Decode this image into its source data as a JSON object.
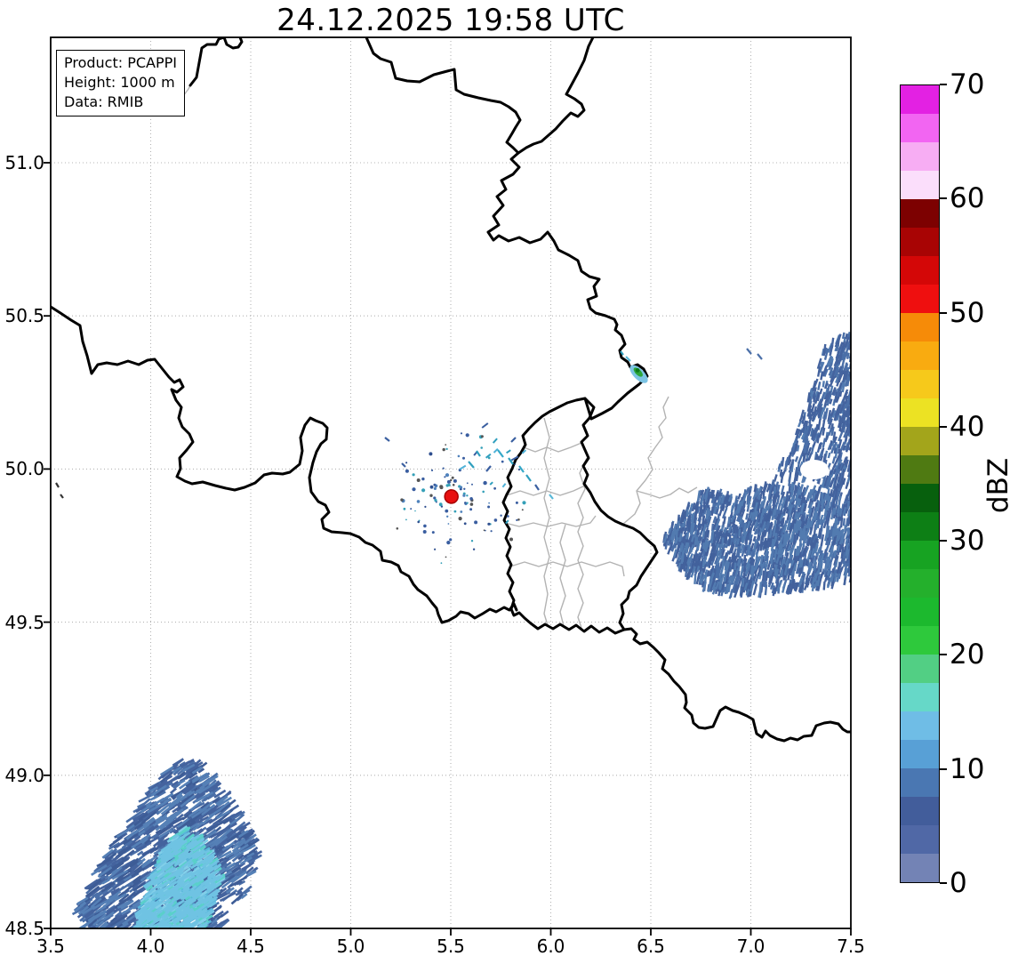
{
  "title": "24.12.2025 19:58 UTC",
  "info_box": {
    "line1": "Product: PCAPPI",
    "line2": "Height: 1000 m",
    "line3": "Data: RMIB"
  },
  "chart_data": {
    "type": "heatmap",
    "subtype": "weather-radar-reflectivity-map",
    "title": "24.12.2025 19:58 UTC",
    "x_axis": {
      "label": "",
      "ticks": [
        "3.5",
        "4.0",
        "4.5",
        "5.0",
        "5.5",
        "6.0",
        "6.5",
        "7.0",
        "7.5"
      ],
      "range": [
        3.5,
        7.5
      ],
      "unit": "degrees longitude"
    },
    "y_axis": {
      "label": "",
      "ticks": [
        "51.0",
        "50.5",
        "50.0",
        "49.5",
        "49.0",
        "48.5"
      ],
      "range": [
        48.5,
        51.41
      ],
      "unit": "degrees latitude"
    },
    "grid": "dotted light gray at every 0.5 degree",
    "colorbar": {
      "label": "dBZ",
      "min": 0,
      "max": 70,
      "ticks": [
        0,
        10,
        20,
        30,
        40,
        50,
        60,
        70
      ],
      "segment_step_dbz": 2.5,
      "segment_colors_low_to_high": [
        "#7383b5",
        "#5068a6",
        "#425d9b",
        "#4a77b2",
        "#58a0d6",
        "#6fbde6",
        "#66d8c8",
        "#52cf84",
        "#2ec93c",
        "#1cb92e",
        "#24b02c",
        "#17a322",
        "#0d7f15",
        "#07600d",
        "#4f7a12",
        "#a3a51b",
        "#ece223",
        "#f6c91b",
        "#f9ab10",
        "#f68b08",
        "#ef0f0f",
        "#d40707",
        "#a80404",
        "#7d0101",
        "#fbdefb",
        "#f7adf3",
        "#f265f2",
        "#e321e3"
      ]
    },
    "radar_site": {
      "lon": 5.503,
      "lat": 49.91,
      "marker": "filled-red-circle",
      "marker_color": "#e81010",
      "marker_edge": "#a80000"
    },
    "echoes": [
      {
        "name": "precipitation-area-southwest",
        "lon_range": [
          3.62,
          4.55
        ],
        "lat_range": [
          48.5,
          49.06
        ],
        "typical_dbz": [
          0,
          15
        ],
        "texture": "radial steel-blue streaks with lighter cyan core"
      },
      {
        "name": "precipitation-area-east",
        "lon_range": [
          6.55,
          7.5
        ],
        "lat_range": [
          49.72,
          50.48
        ],
        "typical_dbz": [
          0,
          10
        ],
        "texture": "speckled steel-blue near-vertical streaks"
      },
      {
        "name": "small-cell-belgian-german-border",
        "lon": 6.44,
        "lat": 50.31,
        "typical_dbz": [
          10,
          35
        ],
        "colors": [
          "#7cc4e4",
          "#2ca63a",
          "#0c7a1c"
        ]
      },
      {
        "name": "ground-clutter-ring-around-radar",
        "lon": 5.503,
        "lat": 49.91,
        "typical_dbz": [
          0,
          10
        ]
      }
    ],
    "map_features": {
      "national_borders": "Belgium, Netherlands, Germany, Luxembourg, France (thick black lines)",
      "regional_borders": "Luxembourg cantons and adjacent German districts (thin gray lines)"
    }
  }
}
